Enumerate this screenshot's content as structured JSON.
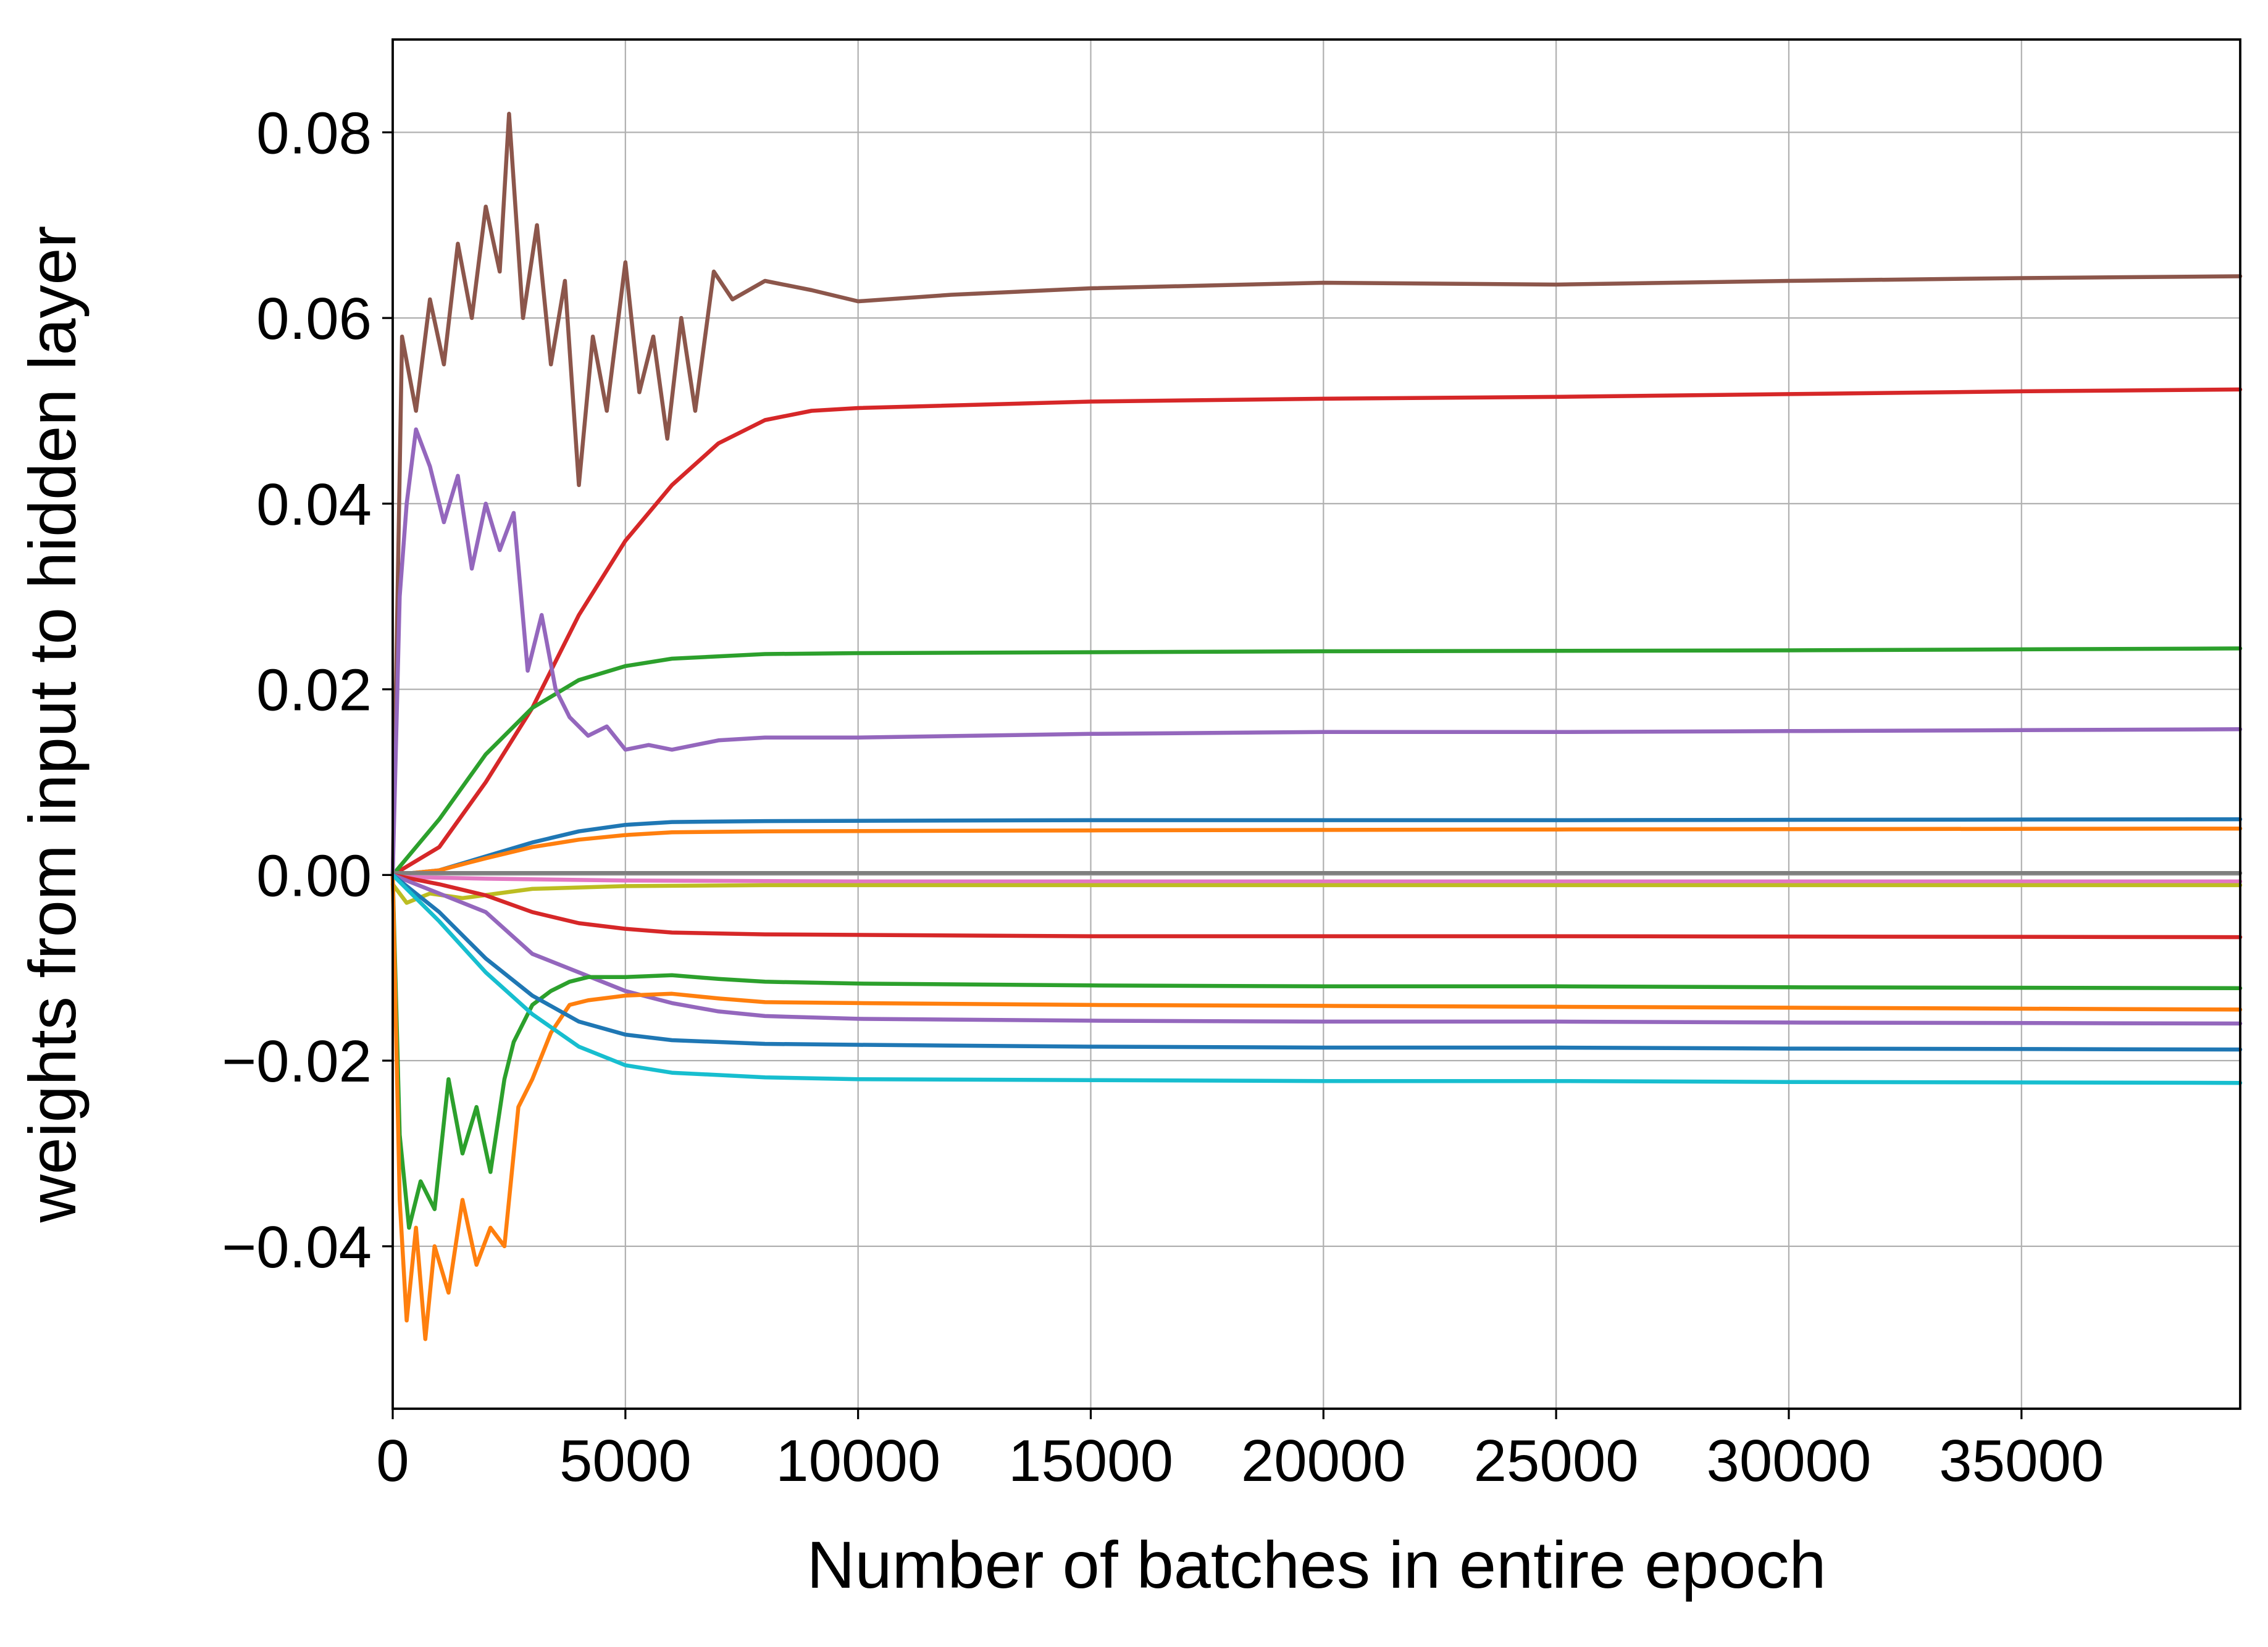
{
  "chart_data": {
    "type": "line",
    "title": "",
    "xlabel": "Number of batches in entire epoch",
    "ylabel": "weights from input to hidden layer",
    "xlim": [
      0,
      39700
    ],
    "ylim": [
      -0.0575,
      0.09
    ],
    "grid": true,
    "legend": "none",
    "x_ticks": [
      {
        "value": 0,
        "label": "0"
      },
      {
        "value": 5000,
        "label": "5000"
      },
      {
        "value": 10000,
        "label": "10000"
      },
      {
        "value": 15000,
        "label": "15000"
      },
      {
        "value": 20000,
        "label": "20000"
      },
      {
        "value": 25000,
        "label": "25000"
      },
      {
        "value": 30000,
        "label": "30000"
      },
      {
        "value": 35000,
        "label": "35000"
      }
    ],
    "y_ticks": [
      {
        "value": -0.04,
        "label": "−0.04"
      },
      {
        "value": -0.02,
        "label": "−0.02"
      },
      {
        "value": 0.0,
        "label": "0.00"
      },
      {
        "value": 0.02,
        "label": "0.02"
      },
      {
        "value": 0.04,
        "label": "0.04"
      },
      {
        "value": 0.06,
        "label": "0.06"
      },
      {
        "value": 0.08,
        "label": "0.08"
      }
    ],
    "series": [
      {
        "color": "#8c564b",
        "points": [
          [
            0,
            0.0
          ],
          [
            200,
            0.058
          ],
          [
            500,
            0.05
          ],
          [
            800,
            0.062
          ],
          [
            1100,
            0.055
          ],
          [
            1400,
            0.068
          ],
          [
            1700,
            0.06
          ],
          [
            2000,
            0.072
          ],
          [
            2300,
            0.065
          ],
          [
            2500,
            0.082
          ],
          [
            2800,
            0.06
          ],
          [
            3100,
            0.07
          ],
          [
            3400,
            0.055
          ],
          [
            3700,
            0.064
          ],
          [
            4000,
            0.042
          ],
          [
            4300,
            0.058
          ],
          [
            4600,
            0.05
          ],
          [
            5000,
            0.066
          ],
          [
            5300,
            0.052
          ],
          [
            5600,
            0.058
          ],
          [
            5900,
            0.047
          ],
          [
            6200,
            0.06
          ],
          [
            6500,
            0.05
          ],
          [
            6900,
            0.065
          ],
          [
            7300,
            0.062
          ],
          [
            8000,
            0.064
          ],
          [
            9000,
            0.063
          ],
          [
            10000,
            0.0618
          ],
          [
            12000,
            0.0625
          ],
          [
            15000,
            0.0632
          ],
          [
            20000,
            0.0638
          ],
          [
            25000,
            0.0636
          ],
          [
            30000,
            0.064
          ],
          [
            35000,
            0.0643
          ],
          [
            39700,
            0.0645
          ]
        ]
      },
      {
        "color": "#d62728",
        "points": [
          [
            0,
            0.0
          ],
          [
            1000,
            0.003
          ],
          [
            2000,
            0.01
          ],
          [
            3000,
            0.018
          ],
          [
            4000,
            0.028
          ],
          [
            5000,
            0.036
          ],
          [
            6000,
            0.042
          ],
          [
            7000,
            0.0465
          ],
          [
            8000,
            0.049
          ],
          [
            9000,
            0.05
          ],
          [
            10000,
            0.0503
          ],
          [
            15000,
            0.051
          ],
          [
            20000,
            0.0513
          ],
          [
            25000,
            0.0515
          ],
          [
            30000,
            0.0518
          ],
          [
            35000,
            0.0521
          ],
          [
            39700,
            0.0523
          ]
        ]
      },
      {
        "color": "#2ca02c",
        "points": [
          [
            0,
            0.0
          ],
          [
            1000,
            0.006
          ],
          [
            2000,
            0.013
          ],
          [
            3000,
            0.018
          ],
          [
            4000,
            0.021
          ],
          [
            5000,
            0.0225
          ],
          [
            6000,
            0.0233
          ],
          [
            8000,
            0.0238
          ],
          [
            10000,
            0.0239
          ],
          [
            20000,
            0.0241
          ],
          [
            30000,
            0.0242
          ],
          [
            39700,
            0.0244
          ]
        ]
      },
      {
        "color": "#9467bd",
        "points": [
          [
            0,
            0.0
          ],
          [
            150,
            0.03
          ],
          [
            300,
            0.04
          ],
          [
            500,
            0.048
          ],
          [
            800,
            0.044
          ],
          [
            1100,
            0.038
          ],
          [
            1400,
            0.043
          ],
          [
            1700,
            0.033
          ],
          [
            2000,
            0.04
          ],
          [
            2300,
            0.035
          ],
          [
            2600,
            0.039
          ],
          [
            2900,
            0.022
          ],
          [
            3200,
            0.028
          ],
          [
            3500,
            0.02
          ],
          [
            3800,
            0.017
          ],
          [
            4200,
            0.015
          ],
          [
            4600,
            0.016
          ],
          [
            5000,
            0.0135
          ],
          [
            5500,
            0.014
          ],
          [
            6000,
            0.0135
          ],
          [
            7000,
            0.0145
          ],
          [
            8000,
            0.0148
          ],
          [
            10000,
            0.0148
          ],
          [
            15000,
            0.0152
          ],
          [
            20000,
            0.0154
          ],
          [
            25000,
            0.0154
          ],
          [
            30000,
            0.0155
          ],
          [
            35000,
            0.0156
          ],
          [
            39700,
            0.0157
          ]
        ]
      },
      {
        "color": "#1f77b4",
        "points": [
          [
            0,
            0.0
          ],
          [
            1000,
            0.0005
          ],
          [
            2000,
            0.002
          ],
          [
            3000,
            0.0035
          ],
          [
            4000,
            0.0047
          ],
          [
            5000,
            0.0054
          ],
          [
            6000,
            0.0057
          ],
          [
            8000,
            0.0058
          ],
          [
            15000,
            0.0059
          ],
          [
            25000,
            0.0059
          ],
          [
            39700,
            0.006
          ]
        ]
      },
      {
        "color": "#ff7f0e",
        "points": [
          [
            0,
            0.0
          ],
          [
            1000,
            0.0005
          ],
          [
            2000,
            0.0018
          ],
          [
            3000,
            0.003
          ],
          [
            4000,
            0.0038
          ],
          [
            5000,
            0.0043
          ],
          [
            6000,
            0.0046
          ],
          [
            8000,
            0.0047
          ],
          [
            15000,
            0.0048
          ],
          [
            25000,
            0.0049
          ],
          [
            39700,
            0.005
          ]
        ]
      },
      {
        "color": "#7f7f7f",
        "points": [
          [
            0,
            0.0002
          ],
          [
            10000,
            0.0002
          ],
          [
            20000,
            0.0002
          ],
          [
            30000,
            0.0002
          ],
          [
            39700,
            0.0002
          ]
        ]
      },
      {
        "color": "#e377c2",
        "points": [
          [
            0,
            -0.0002
          ],
          [
            2000,
            -0.0004
          ],
          [
            5000,
            -0.0006
          ],
          [
            10000,
            -0.0007
          ],
          [
            39700,
            -0.0007
          ]
        ]
      },
      {
        "color": "#bcbd22",
        "points": [
          [
            0,
            -0.001
          ],
          [
            300,
            -0.003
          ],
          [
            800,
            -0.002
          ],
          [
            1500,
            -0.0025
          ],
          [
            3000,
            -0.0015
          ],
          [
            5000,
            -0.0012
          ],
          [
            8000,
            -0.0011
          ],
          [
            15000,
            -0.0011
          ],
          [
            25000,
            -0.0011
          ],
          [
            39700,
            -0.0011
          ]
        ]
      },
      {
        "color": "#d62728",
        "points": [
          [
            0,
            0.0
          ],
          [
            1000,
            -0.001
          ],
          [
            2000,
            -0.0022
          ],
          [
            3000,
            -0.004
          ],
          [
            4000,
            -0.0052
          ],
          [
            5000,
            -0.0058
          ],
          [
            6000,
            -0.0062
          ],
          [
            8000,
            -0.0064
          ],
          [
            15000,
            -0.0066
          ],
          [
            25000,
            -0.0066
          ],
          [
            39700,
            -0.0067
          ]
        ]
      },
      {
        "color": "#9467bd",
        "points": [
          [
            0,
            0.0
          ],
          [
            1000,
            -0.002
          ],
          [
            2000,
            -0.004
          ],
          [
            3000,
            -0.0085
          ],
          [
            4000,
            -0.0105
          ],
          [
            5000,
            -0.0125
          ],
          [
            6000,
            -0.0138
          ],
          [
            7000,
            -0.0147
          ],
          [
            8000,
            -0.0152
          ],
          [
            10000,
            -0.0155
          ],
          [
            15000,
            -0.0157
          ],
          [
            20000,
            -0.0158
          ],
          [
            25000,
            -0.0158
          ],
          [
            30000,
            -0.0159
          ],
          [
            39700,
            -0.016
          ]
        ]
      },
      {
        "color": "#2ca02c",
        "points": [
          [
            0,
            0.0
          ],
          [
            150,
            -0.028
          ],
          [
            350,
            -0.038
          ],
          [
            600,
            -0.033
          ],
          [
            900,
            -0.036
          ],
          [
            1200,
            -0.022
          ],
          [
            1500,
            -0.03
          ],
          [
            1800,
            -0.025
          ],
          [
            2100,
            -0.032
          ],
          [
            2400,
            -0.022
          ],
          [
            2600,
            -0.018
          ],
          [
            3000,
            -0.014
          ],
          [
            3400,
            -0.0125
          ],
          [
            3800,
            -0.0115
          ],
          [
            4200,
            -0.011
          ],
          [
            5000,
            -0.011
          ],
          [
            6000,
            -0.0108
          ],
          [
            7000,
            -0.0112
          ],
          [
            8000,
            -0.0115
          ],
          [
            10000,
            -0.0117
          ],
          [
            15000,
            -0.0119
          ],
          [
            20000,
            -0.012
          ],
          [
            25000,
            -0.012
          ],
          [
            30000,
            -0.0121
          ],
          [
            39700,
            -0.0122
          ]
        ]
      },
      {
        "color": "#ff7f0e",
        "points": [
          [
            0,
            0.0
          ],
          [
            150,
            -0.035
          ],
          [
            300,
            -0.048
          ],
          [
            500,
            -0.038
          ],
          [
            700,
            -0.05
          ],
          [
            900,
            -0.04
          ],
          [
            1200,
            -0.045
          ],
          [
            1500,
            -0.035
          ],
          [
            1800,
            -0.042
          ],
          [
            2100,
            -0.038
          ],
          [
            2400,
            -0.04
          ],
          [
            2700,
            -0.025
          ],
          [
            3000,
            -0.022
          ],
          [
            3400,
            -0.017
          ],
          [
            3800,
            -0.014
          ],
          [
            4200,
            -0.0135
          ],
          [
            5000,
            -0.013
          ],
          [
            6000,
            -0.0128
          ],
          [
            7000,
            -0.0133
          ],
          [
            8000,
            -0.0137
          ],
          [
            10000,
            -0.0138
          ],
          [
            15000,
            -0.014
          ],
          [
            20000,
            -0.0141
          ],
          [
            25000,
            -0.0142
          ],
          [
            30000,
            -0.0143
          ],
          [
            39700,
            -0.0145
          ]
        ]
      },
      {
        "color": "#1f77b4",
        "points": [
          [
            0,
            0.0
          ],
          [
            1000,
            -0.004
          ],
          [
            2000,
            -0.009
          ],
          [
            3000,
            -0.013
          ],
          [
            4000,
            -0.0158
          ],
          [
            5000,
            -0.0172
          ],
          [
            6000,
            -0.0178
          ],
          [
            8000,
            -0.0182
          ],
          [
            10000,
            -0.0183
          ],
          [
            15000,
            -0.0185
          ],
          [
            20000,
            -0.0186
          ],
          [
            25000,
            -0.0186
          ],
          [
            30000,
            -0.0187
          ],
          [
            39700,
            -0.0188
          ]
        ]
      },
      {
        "color": "#17becf",
        "points": [
          [
            0,
            0.0
          ],
          [
            1000,
            -0.005
          ],
          [
            2000,
            -0.0105
          ],
          [
            3000,
            -0.015
          ],
          [
            4000,
            -0.0185
          ],
          [
            5000,
            -0.0205
          ],
          [
            6000,
            -0.0213
          ],
          [
            8000,
            -0.0218
          ],
          [
            10000,
            -0.022
          ],
          [
            15000,
            -0.0221
          ],
          [
            20000,
            -0.0222
          ],
          [
            25000,
            -0.0222
          ],
          [
            30000,
            -0.0223
          ],
          [
            39700,
            -0.0224
          ]
        ]
      }
    ]
  }
}
